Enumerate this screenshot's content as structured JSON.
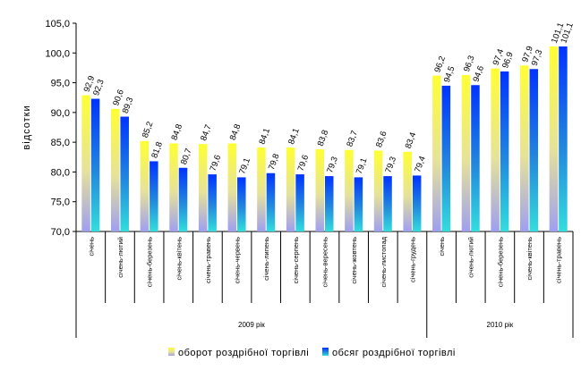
{
  "chart_data": {
    "type": "bar",
    "ylabel": "відсотки",
    "ylim": [
      70,
      105
    ],
    "yticks": [
      "70,0",
      "75,0",
      "80,0",
      "85,0",
      "90,0",
      "95,0",
      "100,0",
      "105,0"
    ],
    "grid": false,
    "legend_position": "bottom",
    "categories": [
      "січень",
      "січень-лютий",
      "січень-березень",
      "січень-квітень",
      "січень-травень",
      "січень-червень",
      "січень-липень",
      "січень-серпень",
      "січень-вересень",
      "січень-жовтень",
      "січень-листопад",
      "січень-грудень",
      "січень",
      "січень-лютий",
      "січень-березень",
      "січень-квітень",
      "січень-травень"
    ],
    "groups": [
      {
        "label": "2009 рік",
        "count": 12
      },
      {
        "label": "2010 рік",
        "count": 5
      }
    ],
    "series": [
      {
        "name": "оборот роздрібної торгівлі",
        "color": "#ffff33",
        "values": [
          92.9,
          90.6,
          85.2,
          84.8,
          84.7,
          84.8,
          84.1,
          84.1,
          83.8,
          83.7,
          83.6,
          83.4,
          96.2,
          96.3,
          97.4,
          97.9,
          101.1
        ],
        "labels": [
          "92,9",
          "90,6",
          "85,2",
          "84,8",
          "84,7",
          "84,8",
          "84,1",
          "84,1",
          "83,8",
          "83,7",
          "83,6",
          "83,4",
          "96,2",
          "96,3",
          "97,4",
          "97,9",
          "101,1"
        ]
      },
      {
        "name": "обсяг роздрібної торгівлі",
        "color": "#0033ff",
        "values": [
          92.3,
          89.3,
          81.8,
          80.7,
          79.6,
          79.1,
          79.8,
          79.6,
          79.3,
          79.1,
          79.3,
          79.4,
          94.5,
          94.6,
          96.9,
          97.3,
          101.1
        ],
        "labels": [
          "92,3",
          "89,3",
          "81,8",
          "80,7",
          "79,6",
          "79,1",
          "79,8",
          "79,6",
          "79,3",
          "79,1",
          "79,3",
          "79,4",
          "94,5",
          "94,6",
          "96,9",
          "97,3",
          "101,1"
        ]
      }
    ]
  }
}
